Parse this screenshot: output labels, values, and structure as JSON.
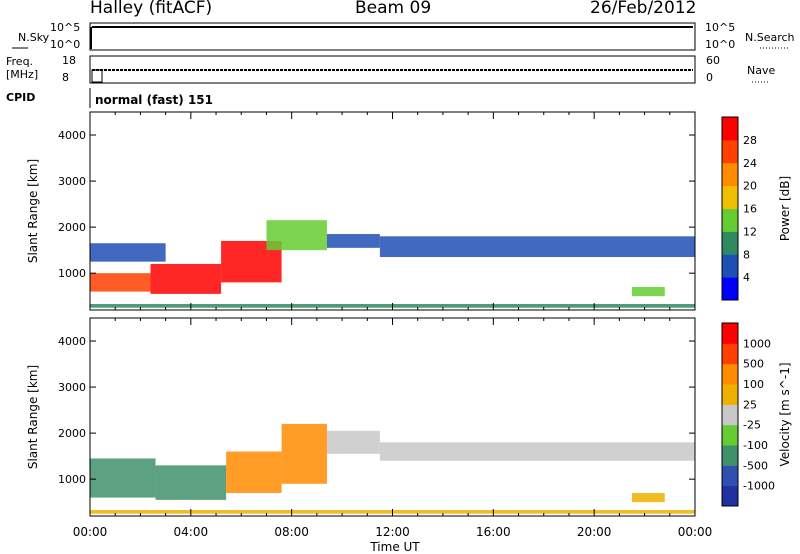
{
  "header": {
    "site": "Halley (fitACF)",
    "beam": "Beam 09",
    "date": "26/Feb/2012"
  },
  "panels": {
    "nsky_label": "N.Sky",
    "nsearch_label": "N.Search",
    "nsky_ticks": [
      "10^5",
      "10^0"
    ],
    "nsearch_ticks": [
      "10^5",
      "10^0"
    ],
    "freq_label_1": "Freq.",
    "freq_label_2": "[MHz]",
    "freq_ticks": [
      "18",
      "8"
    ],
    "nave_label": "Nave",
    "nave_ticks": [
      "60",
      "0"
    ],
    "cpid_label": "CPID",
    "cpid_value": "normal (fast) 151"
  },
  "chart_data": [
    {
      "type": "heatmap",
      "title": "",
      "ylabel": "Slant Range [km]",
      "xlabel": "",
      "x_ticks": [
        "00:00",
        "04:00",
        "08:00",
        "12:00",
        "16:00",
        "20:00",
        "00:00"
      ],
      "y_ticks": [
        1000,
        2000,
        3000,
        4000
      ],
      "ylim": [
        200,
        4500
      ],
      "xlim_hours": [
        0,
        24
      ],
      "colorbar": {
        "label": "Power [dB]",
        "ticks": [
          "4",
          "8",
          "12",
          "16",
          "20",
          "24",
          "28"
        ],
        "colors": [
          "#0000ff",
          "#1e4fb4",
          "#2f8a60",
          "#66cc33",
          "#f0c000",
          "#ff8c00",
          "#ff4000",
          "#ff0000"
        ]
      },
      "bands": [
        {
          "t0": 0.0,
          "t1": 2.4,
          "r0": 600,
          "r1": 1000,
          "level": 6
        },
        {
          "t0": 2.4,
          "t1": 5.2,
          "r0": 550,
          "r1": 1200,
          "level": 7
        },
        {
          "t0": 5.2,
          "t1": 7.6,
          "r0": 800,
          "r1": 1700,
          "level": 7
        },
        {
          "t0": 0.0,
          "t1": 3.0,
          "r0": 1250,
          "r1": 1650,
          "level": 1
        },
        {
          "t0": 7.0,
          "t1": 9.4,
          "r0": 1500,
          "r1": 2150,
          "level": 3
        },
        {
          "t0": 9.4,
          "t1": 11.5,
          "r0": 1550,
          "r1": 1850,
          "level": 1
        },
        {
          "t0": 11.5,
          "t1": 24.0,
          "r0": 1350,
          "r1": 1800,
          "level": 1
        },
        {
          "t0": 21.5,
          "t1": 22.8,
          "r0": 500,
          "r1": 700,
          "level": 3
        },
        {
          "t0": 0.0,
          "t1": 24.0,
          "r0": 250,
          "r1": 330,
          "level": 2
        }
      ]
    },
    {
      "type": "heatmap",
      "title": "",
      "ylabel": "Slant Range [km]",
      "xlabel": "Time UT",
      "x_ticks": [
        "00:00",
        "04:00",
        "08:00",
        "12:00",
        "16:00",
        "20:00",
        "00:00"
      ],
      "y_ticks": [
        1000,
        2000,
        3000,
        4000
      ],
      "ylim": [
        200,
        4500
      ],
      "xlim_hours": [
        0,
        24
      ],
      "colorbar": {
        "label": "Velocity [m s^-1]",
        "ticks": [
          "1000",
          "500",
          "100",
          "25",
          "-25",
          "-100",
          "-500",
          "-1000"
        ],
        "colors": [
          "#2030a0",
          "#3050b0",
          "#40906a",
          "#66cc33",
          "#c8c8c8",
          "#f0b000",
          "#ff8c00",
          "#ff4000",
          "#ff0000"
        ]
      },
      "bands": [
        {
          "t0": 0.0,
          "t1": 2.6,
          "r0": 600,
          "r1": 1450,
          "level": 2
        },
        {
          "t0": 2.6,
          "t1": 5.4,
          "r0": 550,
          "r1": 1300,
          "level": 2
        },
        {
          "t0": 5.4,
          "t1": 7.6,
          "r0": 700,
          "r1": 1600,
          "level": 6
        },
        {
          "t0": 7.6,
          "t1": 9.4,
          "r0": 900,
          "r1": 2200,
          "level": 6
        },
        {
          "t0": 9.4,
          "t1": 11.5,
          "r0": 1550,
          "r1": 2050,
          "level": 4
        },
        {
          "t0": 11.5,
          "t1": 24.0,
          "r0": 1400,
          "r1": 1800,
          "level": 4
        },
        {
          "t0": 21.5,
          "t1": 22.8,
          "r0": 500,
          "r1": 700,
          "level": 5
        },
        {
          "t0": 0.0,
          "t1": 24.0,
          "r0": 250,
          "r1": 330,
          "level": 5
        }
      ]
    }
  ]
}
